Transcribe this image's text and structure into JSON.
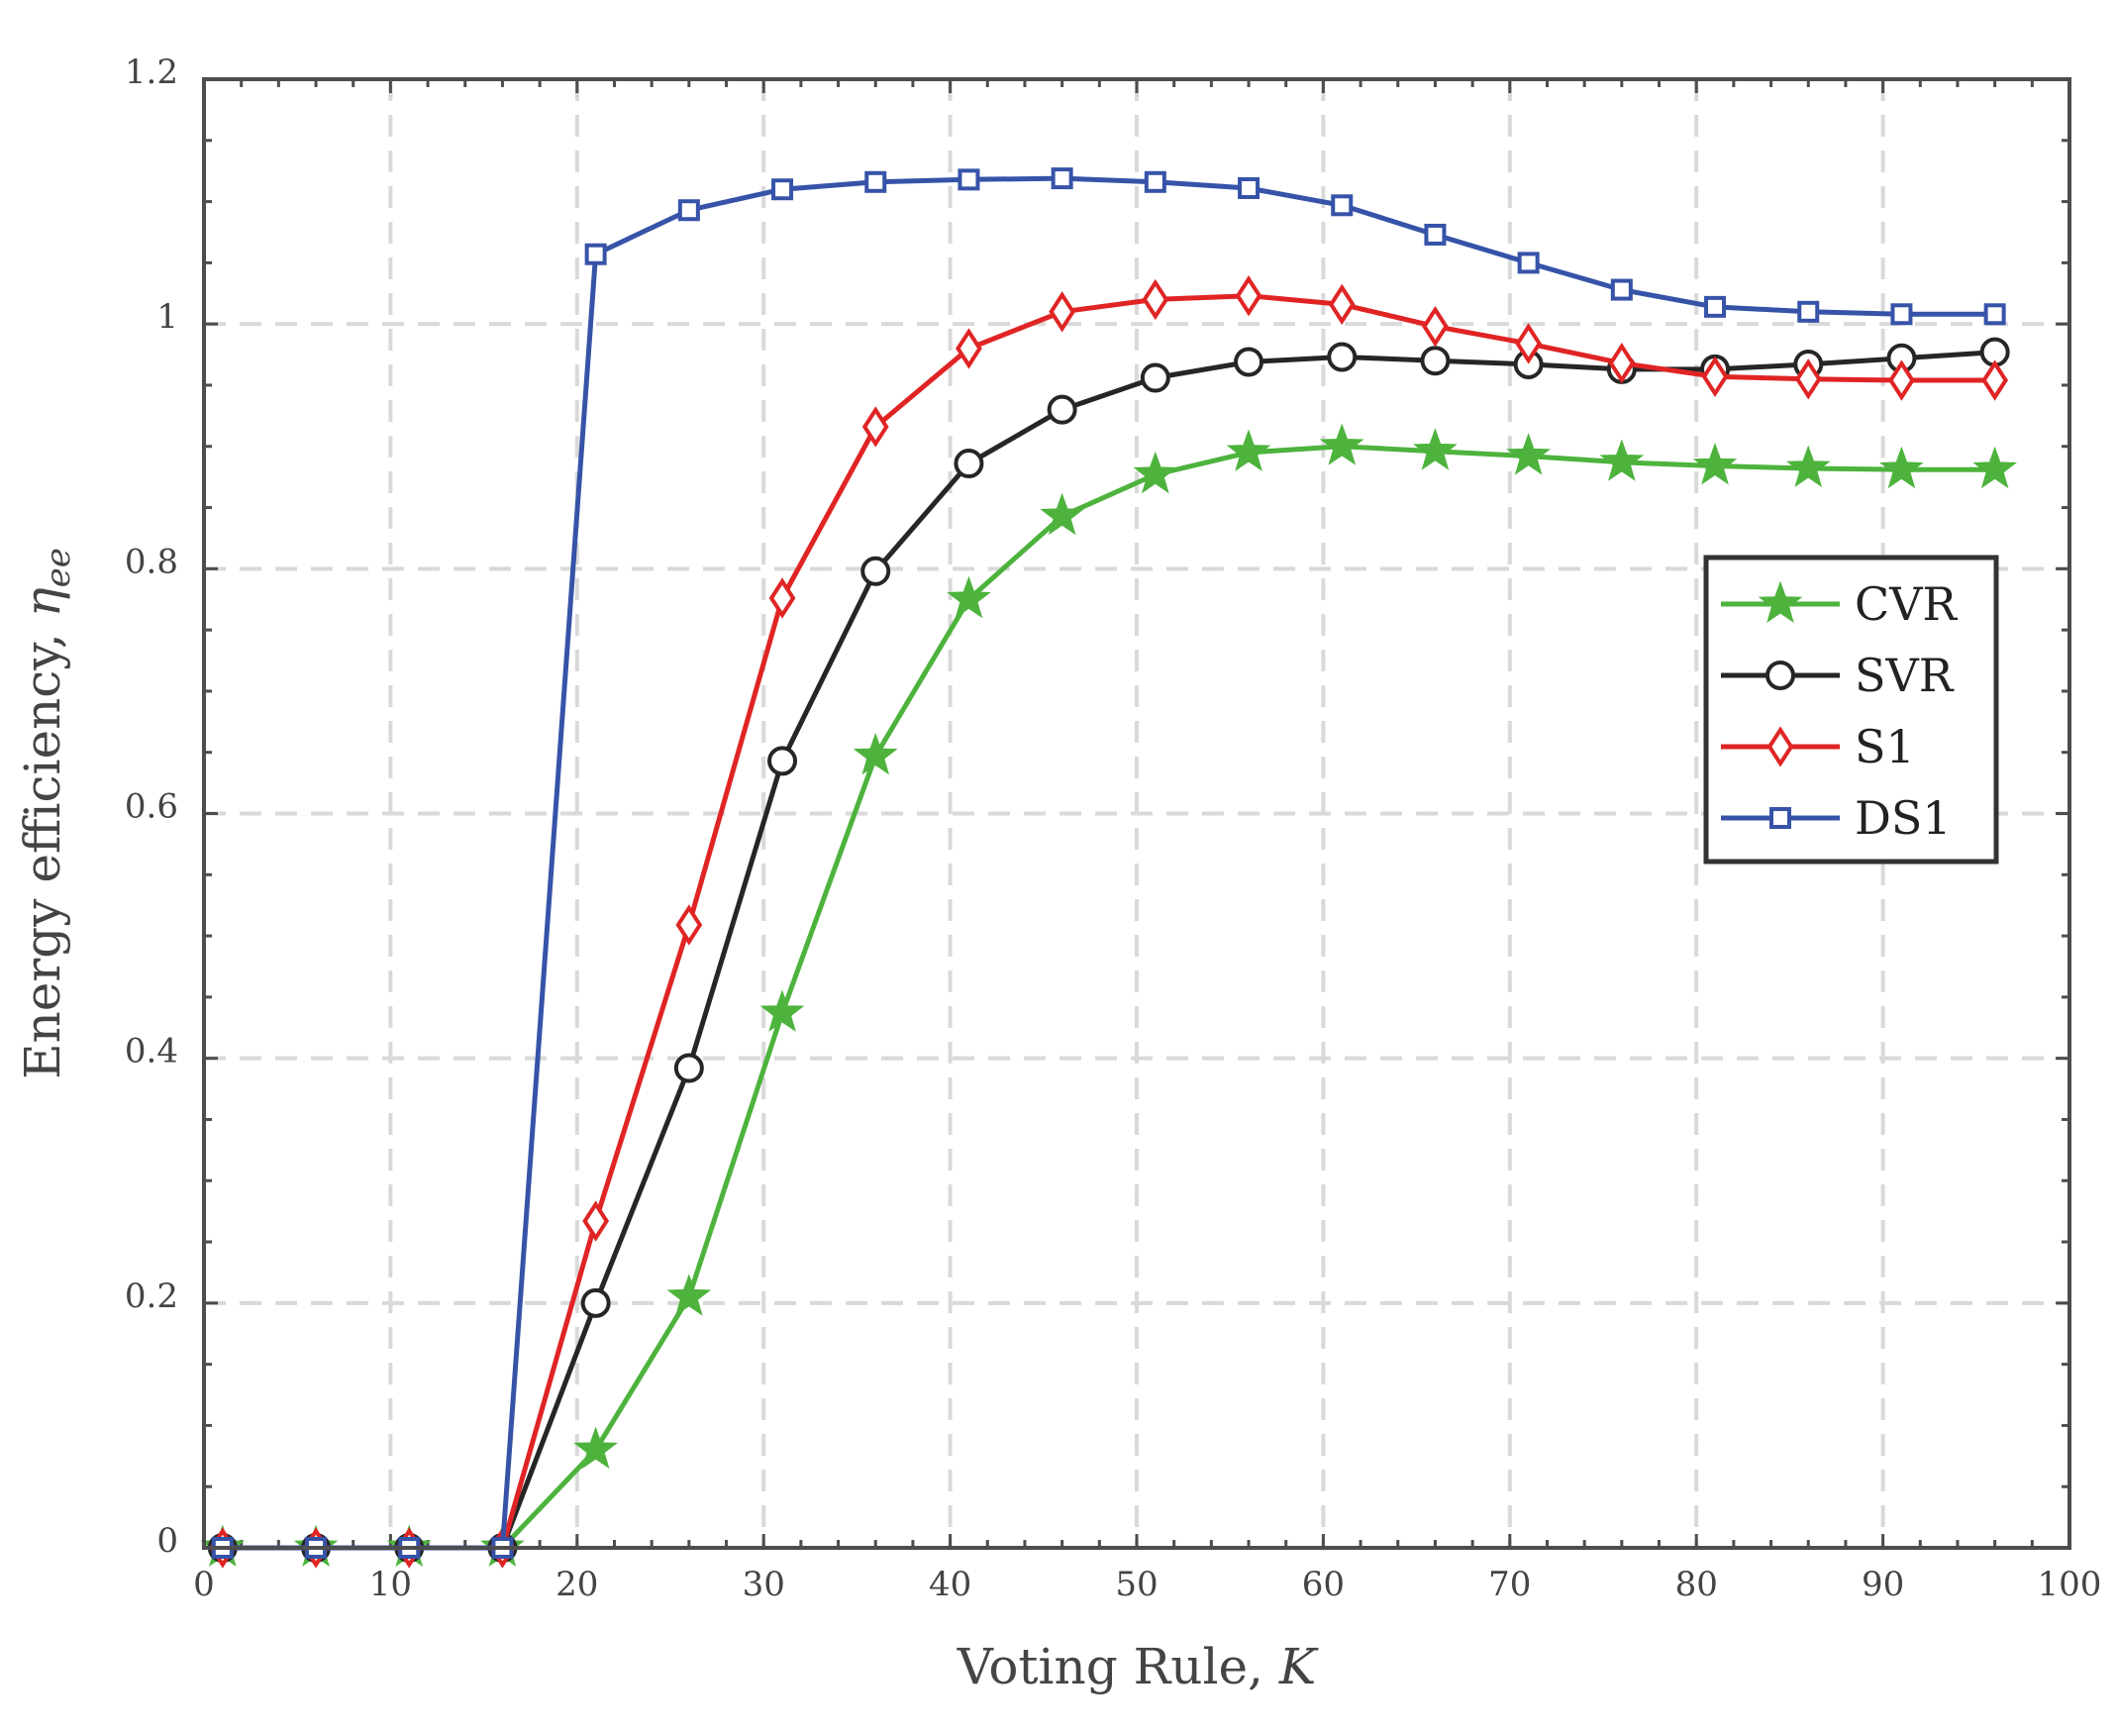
{
  "chart_data": {
    "type": "line",
    "title": "",
    "xlabel": "Voting Rule, K",
    "xlabel_main": "Voting Rule, ",
    "xlabel_var": "K",
    "ylabel": "Energy efficiency, ηee",
    "ylabel_main": "Energy efficiency, ",
    "ylabel_var": "η",
    "ylabel_sub": "ee",
    "xlim": [
      0,
      100
    ],
    "ylim": [
      0,
      1.2
    ],
    "xticks": [
      0,
      10,
      20,
      30,
      40,
      50,
      60,
      70,
      80,
      90,
      100
    ],
    "yticks": [
      0,
      0.2,
      0.4,
      0.6,
      0.8,
      1,
      1.2
    ],
    "xtick_labels": [
      "0",
      "10",
      "20",
      "30",
      "40",
      "50",
      "60",
      "70",
      "80",
      "90",
      "100"
    ],
    "ytick_labels": [
      "0",
      "0.2",
      "0.4",
      "0.6",
      "0.8",
      "1",
      "1.2"
    ],
    "grid": true,
    "legend_position": "right",
    "x": [
      1,
      6,
      11,
      16,
      21,
      26,
      31,
      36,
      41,
      46,
      51,
      56,
      61,
      66,
      71,
      76,
      81,
      86,
      91,
      96
    ],
    "series": [
      {
        "name": "CVR",
        "color": "#4db33d",
        "marker": "star",
        "values": [
          0,
          0,
          0,
          0,
          0.08,
          0.205,
          0.437,
          0.647,
          0.775,
          0.843,
          0.877,
          0.895,
          0.9,
          0.896,
          0.892,
          0.887,
          0.884,
          0.882,
          0.881,
          0.881
        ]
      },
      {
        "name": "SVR",
        "color": "#262626",
        "marker": "circle",
        "values": [
          0,
          0,
          0,
          0,
          0.2,
          0.392,
          0.643,
          0.798,
          0.886,
          0.93,
          0.956,
          0.969,
          0.973,
          0.97,
          0.967,
          0.963,
          0.963,
          0.967,
          0.972,
          0.977
        ]
      },
      {
        "name": "S1",
        "color": "#e02424",
        "marker": "diamond",
        "values": [
          0,
          0,
          0,
          0,
          0.267,
          0.509,
          0.776,
          0.916,
          0.98,
          1.01,
          1.02,
          1.023,
          1.016,
          0.998,
          0.984,
          0.968,
          0.957,
          0.955,
          0.954,
          0.954
        ]
      },
      {
        "name": "DS1",
        "color": "#3653a8",
        "marker": "square",
        "values": [
          0,
          0,
          0,
          0,
          1.057,
          1.093,
          1.11,
          1.116,
          1.118,
          1.119,
          1.116,
          1.111,
          1.097,
          1.073,
          1.05,
          1.028,
          1.014,
          1.01,
          1.008,
          1.008
        ]
      }
    ]
  }
}
